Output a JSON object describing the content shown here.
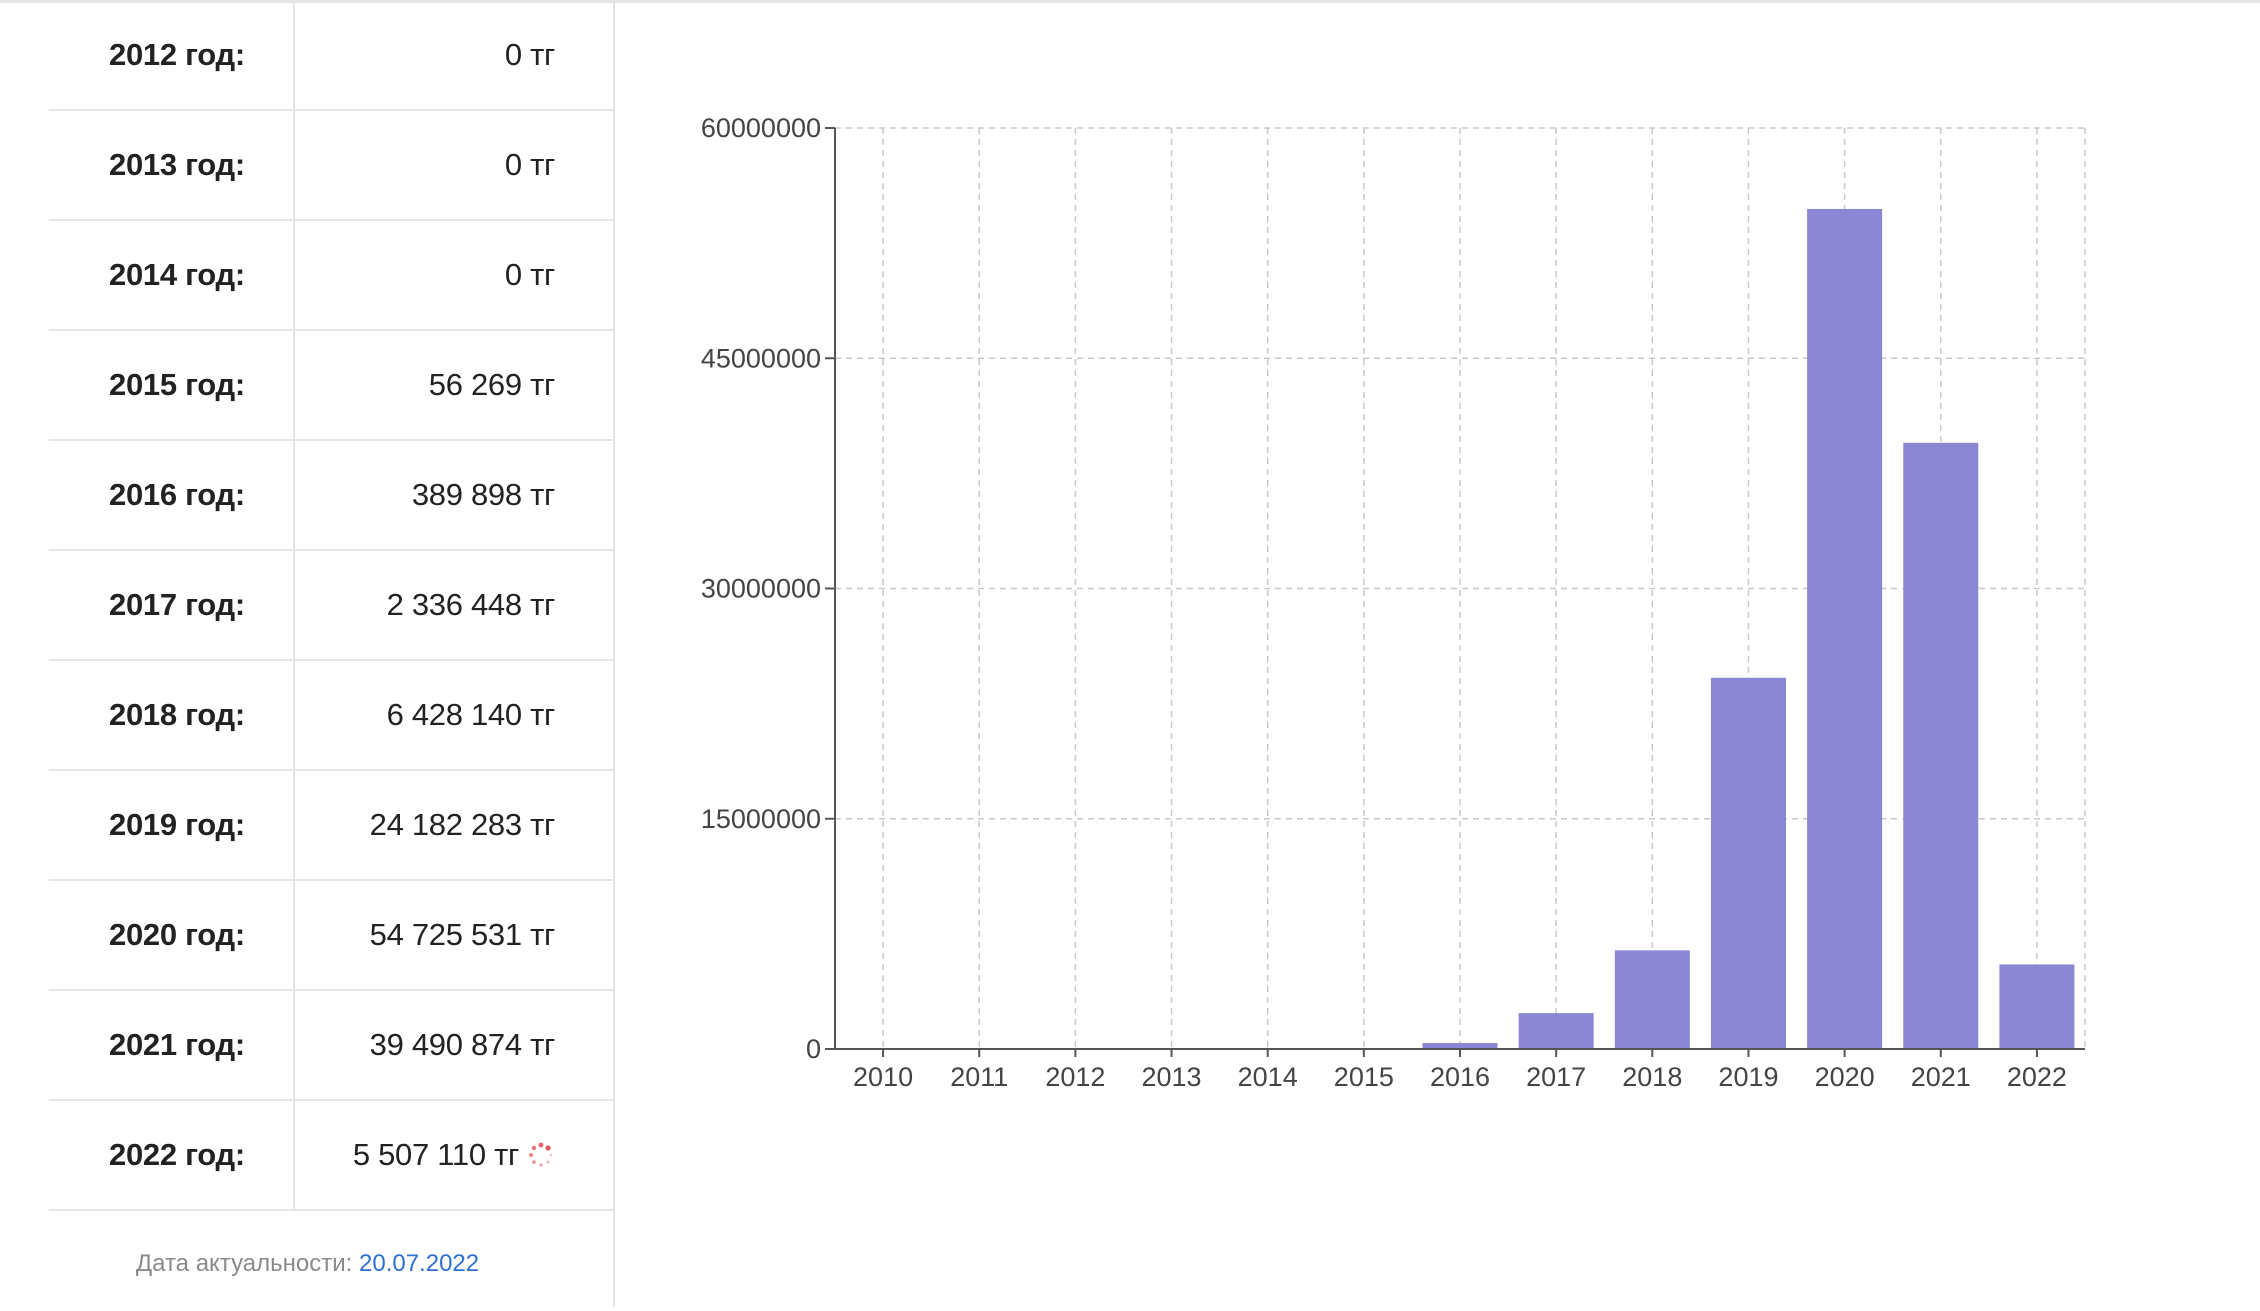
{
  "table": {
    "rows": [
      {
        "year": "2012 год:",
        "value": "0 тг"
      },
      {
        "year": "2013 год:",
        "value": "0 тг"
      },
      {
        "year": "2014 год:",
        "value": "0 тг"
      },
      {
        "year": "2015 год:",
        "value": "56 269 тг"
      },
      {
        "year": "2016 год:",
        "value": "389 898 тг"
      },
      {
        "year": "2017 год:",
        "value": "2 336 448 тг"
      },
      {
        "year": "2018 год:",
        "value": "6 428 140 тг"
      },
      {
        "year": "2019 год:",
        "value": "24 182 283 тг"
      },
      {
        "year": "2020 год:",
        "value": "54 725 531 тг"
      },
      {
        "year": "2021 год:",
        "value": "39 490 874 тг"
      },
      {
        "year": "2022 год:",
        "value": "5 507 110 тг"
      }
    ]
  },
  "footnote": {
    "label": "Дата актуальности: ",
    "date": "20.07.2022"
  },
  "colors": {
    "bar": "#8a86d4",
    "grid": "#c8c8c8",
    "spinner": "#e0454d",
    "link": "#2f6fd0"
  },
  "chart_data": {
    "type": "bar",
    "categories": [
      "2010",
      "2011",
      "2012",
      "2013",
      "2014",
      "2015",
      "2016",
      "2017",
      "2018",
      "2019",
      "2020",
      "2021",
      "2022"
    ],
    "values": [
      0,
      0,
      0,
      0,
      0,
      56269,
      389898,
      2336448,
      6428140,
      24182283,
      54725531,
      39490874,
      5507110
    ],
    "yticks": [
      "0",
      "15000000",
      "30000000",
      "45000000",
      "60000000"
    ],
    "ylim": [
      0,
      60000000
    ],
    "grid": true,
    "legend": "none"
  }
}
